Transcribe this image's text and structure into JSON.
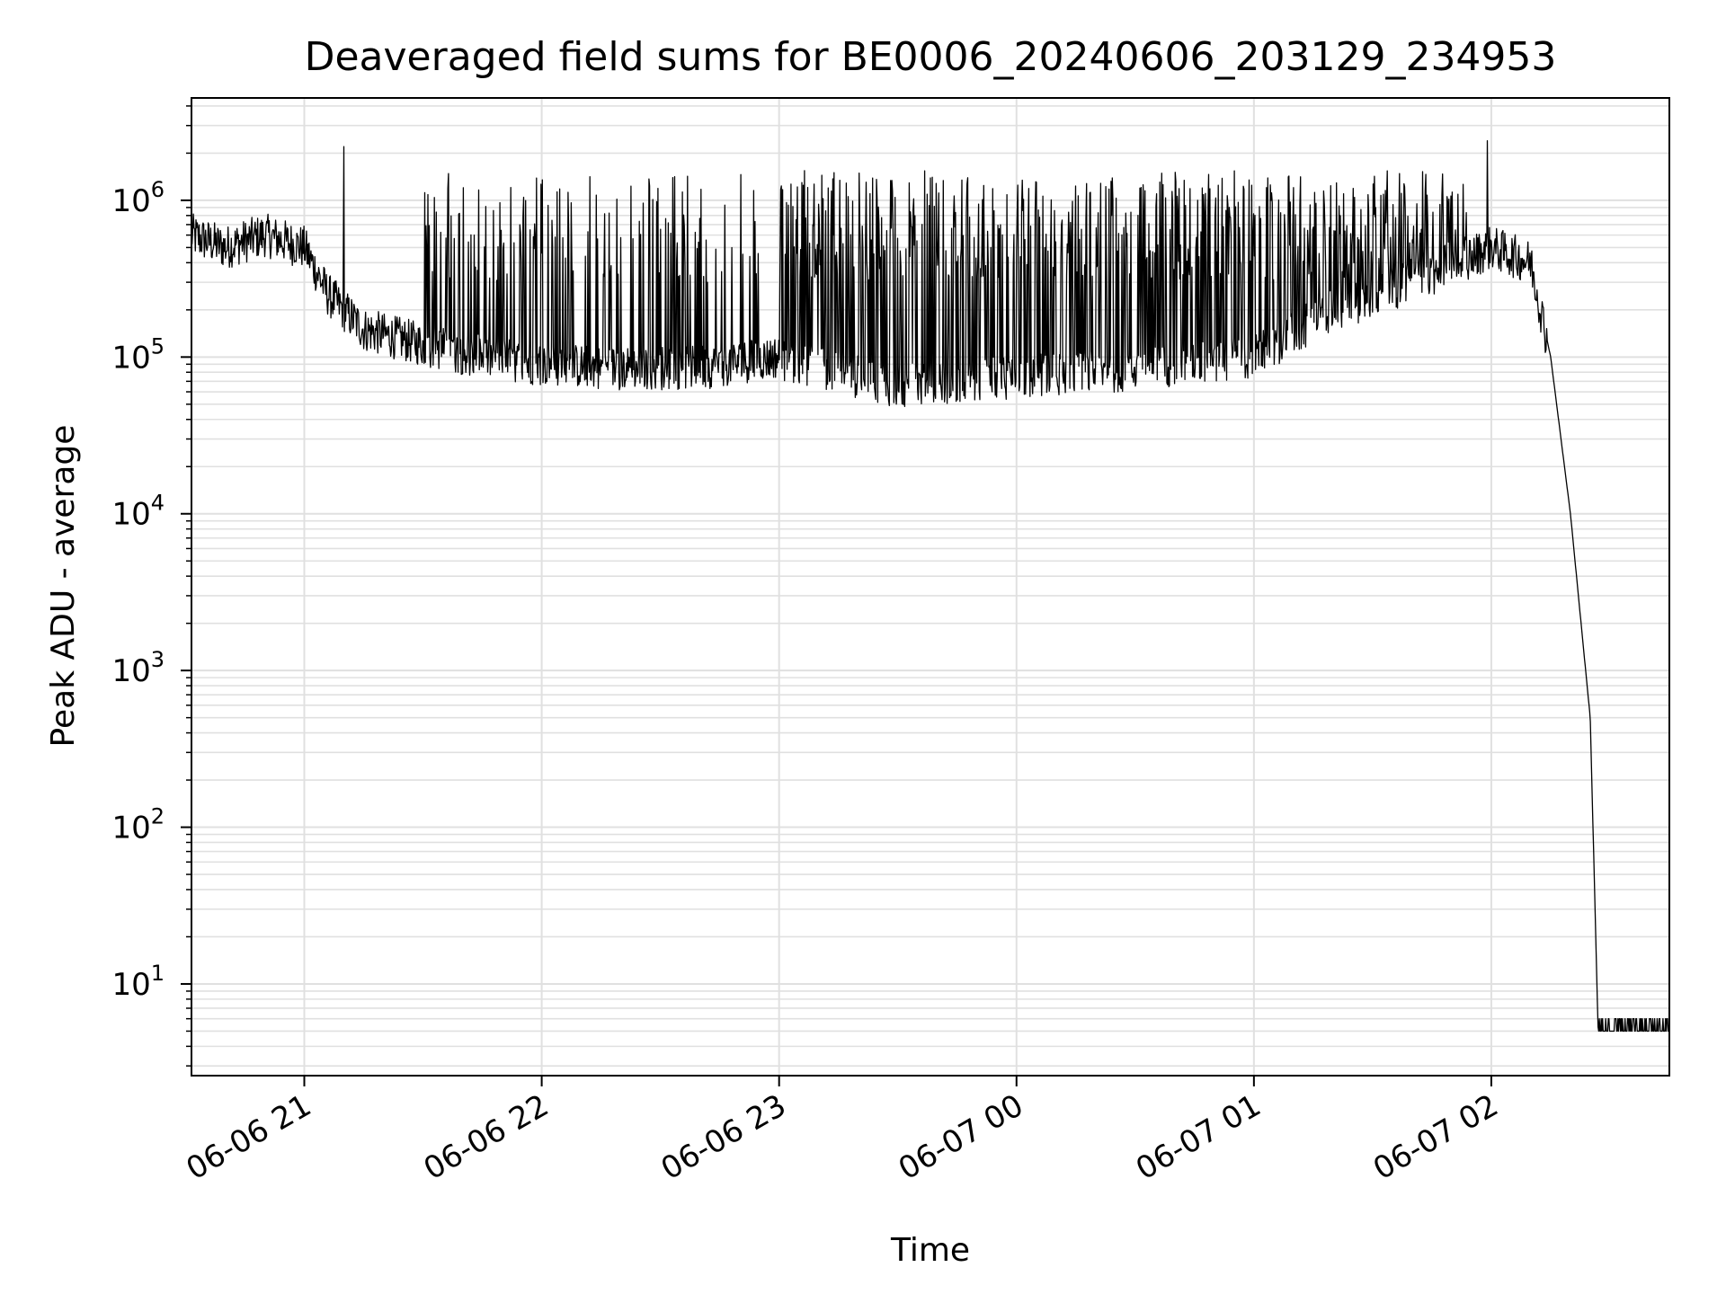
{
  "chart_data": {
    "type": "line",
    "title": "Deaveraged field sums for BE0006_20240606_203129_234953",
    "xlabel": "Time",
    "ylabel": "Peak ADU - average",
    "yscale": "log",
    "ylim": [
      2.6,
      4500000
    ],
    "xlim": [
      "2024-06-06 20:31:29",
      "2024-06-07 02:45:00"
    ],
    "grid": true,
    "line_color": "#000000",
    "grid_color": "#e0e0e0",
    "x_ticks": [
      {
        "label": "06-06 21",
        "value": "2024-06-06 21:00:00"
      },
      {
        "label": "06-06 22",
        "value": "2024-06-06 22:00:00"
      },
      {
        "label": "06-06 23",
        "value": "2024-06-06 23:00:00"
      },
      {
        "label": "06-07 00",
        "value": "2024-06-07 00:00:00"
      },
      {
        "label": "06-07 01",
        "value": "2024-06-07 01:00:00"
      },
      {
        "label": "06-07 02",
        "value": "2024-06-07 02:00:00"
      }
    ],
    "y_ticks": [
      {
        "base": "10",
        "exp": "1",
        "value": 10
      },
      {
        "base": "10",
        "exp": "2",
        "value": 100
      },
      {
        "base": "10",
        "exp": "3",
        "value": 1000
      },
      {
        "base": "10",
        "exp": "4",
        "value": 10000
      },
      {
        "base": "10",
        "exp": "5",
        "value": 100000
      },
      {
        "base": "10",
        "exp": "6",
        "value": 1000000
      }
    ],
    "series": [
      {
        "x": [
          "2024-06-06 20:31:29",
          "2024-06-06 20:40:00",
          "2024-06-06 20:50:00",
          "2024-06-06 21:00:00",
          "2024-06-06 21:06:00",
          "2024-06-06 21:15:00",
          "2024-06-06 21:30:00",
          "2024-06-06 21:45:00",
          "2024-06-06 22:00:00",
          "2024-06-06 22:20:00",
          "2024-06-06 22:40:00",
          "2024-06-06 22:59:00",
          "2024-06-06 23:15:00",
          "2024-06-06 23:30:00",
          "2024-06-06 23:45:00",
          "2024-06-07 00:00:00",
          "2024-06-07 00:20:00",
          "2024-06-07 00:40:00",
          "2024-06-07 01:00:00",
          "2024-06-07 01:20:00",
          "2024-06-07 01:40:00",
          "2024-06-07 02:00:00",
          "2024-06-07 02:10:00",
          "2024-06-07 02:15:00",
          "2024-06-07 02:20:00",
          "2024-06-07 02:25:00",
          "2024-06-07 02:27:00",
          "2024-06-07 02:45:00"
        ],
        "y": [
          600000,
          500000,
          600000,
          500000,
          250000,
          150000,
          120000,
          100000,
          90000,
          85000,
          85000,
          100000,
          80000,
          65000,
          70000,
          75000,
          80000,
          90000,
          100000,
          200000,
          300000,
          500000,
          400000,
          100000,
          10000,
          500,
          5,
          5
        ],
        "spike_bands": [
          {
            "from": "2024-06-06 21:30:00",
            "to": "2024-06-06 22:55:00",
            "peak": 1500000,
            "density": 0.4
          },
          {
            "from": "2024-06-06 23:00:00",
            "to": "2024-06-07 01:55:00",
            "peak": 1550000,
            "density": 0.85
          }
        ],
        "peaks": [
          {
            "x": "2024-06-06 21:10:00",
            "y": 2200000
          },
          {
            "x": "2024-06-07 01:59:00",
            "y": 2400000
          }
        ],
        "floor_blips": {
          "from": "2024-06-07 02:27:00",
          "to": "2024-06-07 02:45:00",
          "low": 5,
          "high": 6
        }
      }
    ]
  }
}
